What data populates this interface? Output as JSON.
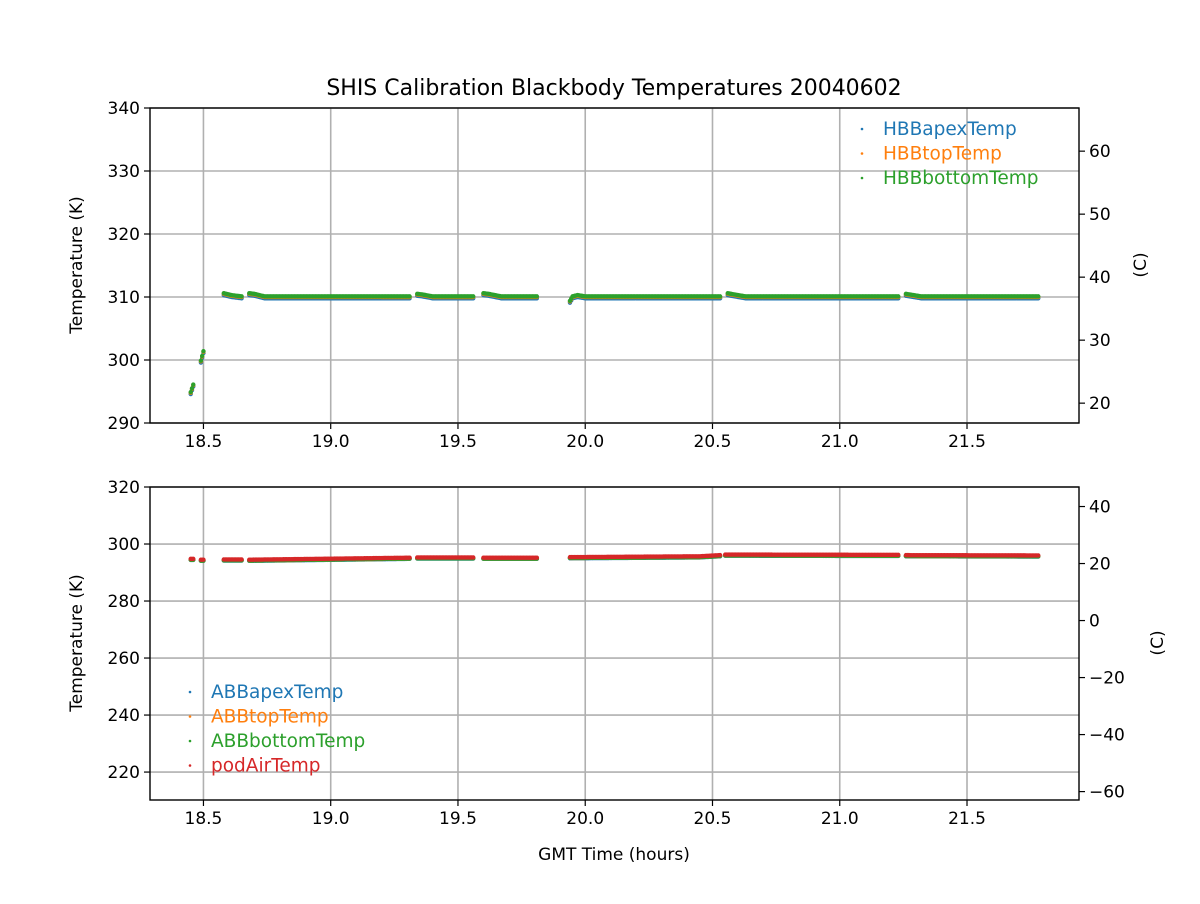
{
  "chart_data": [
    {
      "type": "scatter",
      "title": "SHIS Calibration Blackbody Temperatures 20040602",
      "xlabel": "",
      "ylabel": "Temperature (K)",
      "ylabel_right": "(C)",
      "xlim": [
        18.29,
        21.94
      ],
      "ylim": [
        290,
        340
      ],
      "xticks": [
        "18.5",
        "19.0",
        "19.5",
        "20.0",
        "20.5",
        "21.0",
        "21.5"
      ],
      "xtick_values": [
        18.5,
        19.0,
        19.5,
        20.0,
        20.5,
        21.0,
        21.5
      ],
      "yticks": [
        "290",
        "300",
        "310",
        "320",
        "330",
        "340"
      ],
      "ytick_values": [
        290,
        300,
        310,
        320,
        330,
        340
      ],
      "yticks_right": [
        "20",
        "30",
        "40",
        "50",
        "60"
      ],
      "ytick_right_values": [
        20,
        30,
        40,
        50,
        60
      ],
      "grid": true,
      "legend_position": "top-right",
      "series": [
        {
          "name": "HBBapexTemp",
          "color": "#1f77b4",
          "offset": -0.2
        },
        {
          "name": "HBBtopTemp",
          "color": "#ff7f0e",
          "offset": 0.0
        },
        {
          "name": "HBBbottomTemp",
          "color": "#2ca02c",
          "offset": 0.1
        }
      ],
      "segments": [
        [
          [
            18.45,
            294.8
          ],
          [
            18.46,
            296.0
          ]
        ],
        [
          [
            18.49,
            299.8
          ],
          [
            18.5,
            301.3
          ]
        ],
        [
          [
            18.58,
            310.5
          ],
          [
            18.61,
            310.2
          ],
          [
            18.65,
            310.0
          ]
        ],
        [
          [
            18.68,
            310.5
          ],
          [
            18.7,
            310.4
          ],
          [
            18.74,
            310.0
          ],
          [
            19.31,
            310.0
          ]
        ],
        [
          [
            19.34,
            310.4
          ],
          [
            19.36,
            310.3
          ],
          [
            19.4,
            310.0
          ],
          [
            19.56,
            310.0
          ]
        ],
        [
          [
            19.6,
            310.5
          ],
          [
            19.62,
            310.4
          ],
          [
            19.67,
            310.0
          ],
          [
            19.81,
            310.0
          ]
        ],
        [
          [
            19.94,
            309.3
          ],
          [
            19.95,
            310.0
          ],
          [
            19.97,
            310.2
          ],
          [
            20.0,
            310.0
          ],
          [
            20.53,
            310.0
          ]
        ],
        [
          [
            20.56,
            310.5
          ],
          [
            20.6,
            310.2
          ],
          [
            20.63,
            310.0
          ],
          [
            21.23,
            310.0
          ]
        ],
        [
          [
            21.26,
            310.4
          ],
          [
            21.29,
            310.2
          ],
          [
            21.32,
            310.0
          ],
          [
            21.78,
            310.0
          ]
        ]
      ]
    },
    {
      "type": "scatter",
      "title": "",
      "xlabel": "GMT Time (hours)",
      "ylabel": "Temperature (K)",
      "ylabel_right": "(C)",
      "xlim": [
        18.29,
        21.94
      ],
      "ylim": [
        210.2,
        320
      ],
      "xticks": [
        "18.5",
        "19.0",
        "19.5",
        "20.0",
        "20.5",
        "21.0",
        "21.5"
      ],
      "xtick_values": [
        18.5,
        19.0,
        19.5,
        20.0,
        20.5,
        21.0,
        21.5
      ],
      "yticks": [
        "220",
        "240",
        "260",
        "280",
        "300",
        "320"
      ],
      "ytick_values": [
        220,
        240,
        260,
        280,
        300,
        320
      ],
      "yticks_right": [
        "−60",
        "−40",
        "−20",
        "0",
        "20",
        "40"
      ],
      "ytick_right_values": [
        -60,
        -40,
        -20,
        0,
        20,
        40
      ],
      "grid": true,
      "legend_position": "lower-left",
      "series": [
        {
          "name": "ABBapexTemp",
          "color": "#1f77b4",
          "offset": -0.4
        },
        {
          "name": "ABBtopTemp",
          "color": "#ff7f0e",
          "offset": -0.3
        },
        {
          "name": "ABBbottomTemp",
          "color": "#2ca02c",
          "offset": -0.3
        },
        {
          "name": "podAirTemp",
          "color": "#d62728",
          "offset": 0.0
        }
      ],
      "segments": [
        [
          [
            18.45,
            294.8
          ],
          [
            18.46,
            294.8
          ]
        ],
        [
          [
            18.49,
            294.5
          ],
          [
            18.5,
            294.5
          ]
        ],
        [
          [
            18.58,
            294.6
          ],
          [
            18.65,
            294.6
          ]
        ],
        [
          [
            18.68,
            294.5
          ],
          [
            19.31,
            295.2
          ]
        ],
        [
          [
            19.34,
            295.3
          ],
          [
            19.56,
            295.3
          ]
        ],
        [
          [
            19.6,
            295.2
          ],
          [
            19.81,
            295.2
          ]
        ],
        [
          [
            19.94,
            295.4
          ],
          [
            20.45,
            295.7
          ],
          [
            20.53,
            296.1
          ]
        ],
        [
          [
            20.55,
            296.3
          ],
          [
            21.23,
            296.2
          ]
        ],
        [
          [
            21.26,
            296.1
          ],
          [
            21.78,
            296.0
          ]
        ]
      ]
    }
  ]
}
